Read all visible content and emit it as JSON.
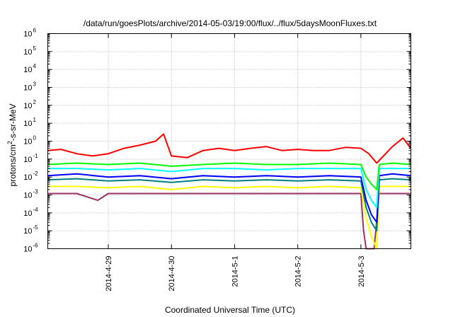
{
  "chart_data": {
    "type": "line",
    "title": "/data/run/goesPlots/archive/2014-05-03/19:00/flux/../flux/5daysMoonFluxes.txt",
    "xlabel": "Coordinated Universal Time (UTC)",
    "ylabel": "protons/cm2-s-sr-MeV",
    "ylabel_parts": {
      "pre": "protons/cm",
      "sup": "2",
      "post": "-s-sr-MeV"
    },
    "y_scale": "log",
    "ylim": [
      1e-06,
      1000000.0
    ],
    "xlim": [
      "2014-04-28 01:00",
      "2014-05-03 19:00"
    ],
    "x_ticks": [
      "2014-4-29",
      "2014-4-30",
      "2014-5-1",
      "2014-5-2",
      "2014-5-3"
    ],
    "y_ticks": [
      {
        "base": "10",
        "exp": "6"
      },
      {
        "base": "10",
        "exp": "5"
      },
      {
        "base": "10",
        "exp": "4"
      },
      {
        "base": "10",
        "exp": "3"
      },
      {
        "base": "10",
        "exp": "2"
      },
      {
        "base": "10",
        "exp": "1"
      },
      {
        "base": "10",
        "exp": "0"
      },
      {
        "base": "10",
        "exp": "-1"
      },
      {
        "base": "10",
        "exp": "-2"
      },
      {
        "base": "10",
        "exp": "-3"
      },
      {
        "base": "10",
        "exp": "-4"
      },
      {
        "base": "10",
        "exp": "-5"
      },
      {
        "base": "10",
        "exp": "-6"
      }
    ],
    "grid": true,
    "legend": "none",
    "series": [
      {
        "color": "#ff0000",
        "x": [
          "2014-04-28 01:00",
          "2014-04-28 06:00",
          "2014-04-28 12:00",
          "2014-04-28 18:00",
          "2014-04-29 00:00",
          "2014-04-29 06:00",
          "2014-04-29 12:00",
          "2014-04-29 18:00",
          "2014-04-29 21:00",
          "2014-04-30 00:00",
          "2014-04-30 06:00",
          "2014-04-30 12:00",
          "2014-04-30 18:00",
          "2014-05-01 00:00",
          "2014-05-01 06:00",
          "2014-05-01 12:00",
          "2014-05-01 18:00",
          "2014-05-02 00:00",
          "2014-05-02 06:00",
          "2014-05-02 12:00",
          "2014-05-02 18:00",
          "2014-05-03 00:00",
          "2014-05-03 03:00",
          "2014-05-03 06:00",
          "2014-05-03 12:00",
          "2014-05-03 16:00",
          "2014-05-03 19:00"
        ],
        "y": [
          0.3,
          0.35,
          0.2,
          0.15,
          0.2,
          0.4,
          0.6,
          1.0,
          2.5,
          0.15,
          0.12,
          0.3,
          0.4,
          0.3,
          0.4,
          0.5,
          0.3,
          0.35,
          0.3,
          0.3,
          0.45,
          0.4,
          0.2,
          0.06,
          0.5,
          1.5,
          0.4
        ]
      },
      {
        "color": "#00ff00",
        "x": [
          "2014-04-28 01:00",
          "2014-04-28 12:00",
          "2014-04-29 00:00",
          "2014-04-29 12:00",
          "2014-04-30 00:00",
          "2014-04-30 12:00",
          "2014-05-01 00:00",
          "2014-05-01 12:00",
          "2014-05-02 00:00",
          "2014-05-02 12:00",
          "2014-05-03 00:00",
          "2014-05-03 02:00",
          "2014-05-03 04:00",
          "2014-05-03 06:00",
          "2014-05-03 07:00",
          "2014-05-03 12:00",
          "2014-05-03 19:00"
        ],
        "y": [
          0.05,
          0.06,
          0.05,
          0.06,
          0.04,
          0.05,
          0.06,
          0.05,
          0.05,
          0.06,
          0.05,
          0.01,
          0.004,
          0.002,
          0.05,
          0.06,
          0.05
        ]
      },
      {
        "color": "#00ffff",
        "x": [
          "2014-04-28 01:00",
          "2014-04-28 12:00",
          "2014-04-29 00:00",
          "2014-04-29 12:00",
          "2014-04-30 00:00",
          "2014-04-30 12:00",
          "2014-05-01 00:00",
          "2014-05-01 12:00",
          "2014-05-02 00:00",
          "2014-05-02 12:00",
          "2014-05-03 00:00",
          "2014-05-03 02:00",
          "2014-05-03 04:00",
          "2014-05-03 06:00",
          "2014-05-03 07:00",
          "2014-05-03 12:00",
          "2014-05-03 19:00"
        ],
        "y": [
          0.03,
          0.03,
          0.025,
          0.03,
          0.02,
          0.03,
          0.03,
          0.025,
          0.03,
          0.03,
          0.03,
          0.002,
          0.0005,
          0.0002,
          0.03,
          0.03,
          0.03
        ]
      },
      {
        "color": "#0000ff",
        "x": [
          "2014-04-28 01:00",
          "2014-04-28 12:00",
          "2014-04-29 00:00",
          "2014-04-29 12:00",
          "2014-04-30 00:00",
          "2014-04-30 12:00",
          "2014-05-01 00:00",
          "2014-05-01 12:00",
          "2014-05-02 00:00",
          "2014-05-02 12:00",
          "2014-05-03 00:00",
          "2014-05-03 02:00",
          "2014-05-03 04:00",
          "2014-05-03 06:00",
          "2014-05-03 07:00",
          "2014-05-03 12:00",
          "2014-05-03 19:00"
        ],
        "y": [
          0.012,
          0.015,
          0.01,
          0.012,
          0.008,
          0.012,
          0.01,
          0.012,
          0.01,
          0.012,
          0.01,
          0.0005,
          8e-05,
          3e-05,
          0.012,
          0.015,
          0.012
        ]
      },
      {
        "color": "#008080",
        "x": [
          "2014-04-28 01:00",
          "2014-04-28 12:00",
          "2014-04-29 00:00",
          "2014-04-29 12:00",
          "2014-04-30 00:00",
          "2014-04-30 12:00",
          "2014-05-01 00:00",
          "2014-05-01 12:00",
          "2014-05-02 00:00",
          "2014-05-02 12:00",
          "2014-05-03 00:00",
          "2014-05-03 02:00",
          "2014-05-03 04:00",
          "2014-05-03 06:00",
          "2014-05-03 07:00",
          "2014-05-03 12:00",
          "2014-05-03 19:00"
        ],
        "y": [
          0.007,
          0.008,
          0.006,
          0.007,
          0.005,
          0.007,
          0.006,
          0.007,
          0.006,
          0.007,
          0.006,
          0.0002,
          3e-05,
          1e-05,
          0.007,
          0.008,
          0.007
        ]
      },
      {
        "color": "#ffff00",
        "x": [
          "2014-04-28 01:00",
          "2014-04-28 12:00",
          "2014-04-29 00:00",
          "2014-04-29 12:00",
          "2014-04-30 00:00",
          "2014-04-30 12:00",
          "2014-05-01 00:00",
          "2014-05-01 12:00",
          "2014-05-02 00:00",
          "2014-05-02 12:00",
          "2014-05-03 00:00",
          "2014-05-03 02:00",
          "2014-05-03 04:00",
          "2014-05-03 06:00",
          "2014-05-03 07:00",
          "2014-05-03 12:00",
          "2014-05-03 19:00"
        ],
        "y": [
          0.003,
          0.003,
          0.0025,
          0.003,
          0.002,
          0.003,
          0.0025,
          0.003,
          0.0025,
          0.003,
          0.0025,
          5e-05,
          5e-06,
          1e-06,
          0.003,
          0.003,
          0.003
        ]
      },
      {
        "color": "#993366",
        "x": [
          "2014-04-28 01:00",
          "2014-04-28 12:00",
          "2014-04-28 20:00",
          "2014-04-29 00:00",
          "2014-04-29 12:00",
          "2014-04-30 00:00",
          "2014-04-30 12:00",
          "2014-05-01 00:00",
          "2014-05-01 12:00",
          "2014-05-02 00:00",
          "2014-05-02 12:00",
          "2014-05-03 00:00",
          "2014-05-03 01:00",
          "2014-05-03 02:00",
          "2014-05-03 05:00",
          "2014-05-03 07:00",
          "2014-05-03 12:00",
          "2014-05-03 19:00"
        ],
        "y": [
          0.0012,
          0.0012,
          0.0005,
          0.0012,
          0.0012,
          0.0012,
          0.0012,
          0.0012,
          0.0012,
          0.0012,
          0.0012,
          0.0012,
          1e-05,
          1e-06,
          1e-06,
          0.0012,
          0.0012,
          0.0012
        ]
      }
    ]
  }
}
